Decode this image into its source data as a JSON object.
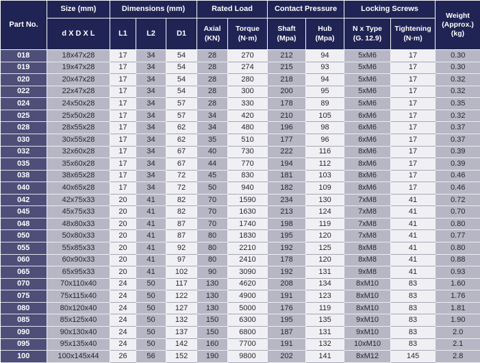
{
  "colors": {
    "header_bg": "#1f2454",
    "part_cell_bg": "#4e4e79",
    "column_gray": "#b6b6c4",
    "column_light": "#f0f0f4",
    "text_dark": "#26262b",
    "text_light": "#ffffff"
  },
  "header": {
    "part_no": "Part No.",
    "groups": {
      "size": "Size (mm)",
      "dimensions": "Dimensions (mm)",
      "rated_load": "Rated Load",
      "contact_pressure": "Contact Pressure",
      "locking_screws": "Locking Screws"
    },
    "weight": {
      "l1": "Weight",
      "l2": "(Approx.)",
      "l3": "(kg)"
    },
    "sub": {
      "size": "d X D X L",
      "l1": "L1",
      "l2": "L2",
      "d1": "D1",
      "axial": {
        "label": "Axial",
        "unit": "(KN)"
      },
      "torque": {
        "label": "Torque",
        "unit": "(N·m)"
      },
      "shaft": {
        "label": "Shaft",
        "unit": "(Mpa)"
      },
      "hub": {
        "label": "Hub",
        "unit": "(Mpa)"
      },
      "n_type": {
        "label": "N x Type",
        "unit": "(G. 12.9)"
      },
      "tightening": {
        "label": "Tightening",
        "unit": "(N·m)"
      }
    }
  },
  "columns": [
    "Part No.",
    "d X D X L",
    "L1",
    "L2",
    "D1",
    "Axial (KN)",
    "Torque (N·m)",
    "Shaft (Mpa)",
    "Hub (Mpa)",
    "N x Type (G. 12.9)",
    "Tightening (N·m)",
    "Weight (Approx.) (kg)"
  ],
  "rows": [
    [
      "018",
      "18x47x28",
      "17",
      "34",
      "54",
      "28",
      "270",
      "212",
      "94",
      "5xM6",
      "17",
      "0.30"
    ],
    [
      "019",
      "19x47x28",
      "17",
      "34",
      "54",
      "28",
      "274",
      "215",
      "93",
      "5xM6",
      "17",
      "0.30"
    ],
    [
      "020",
      "20x47x28",
      "17",
      "34",
      "54",
      "28",
      "280",
      "218",
      "94",
      "5xM6",
      "17",
      "0.32"
    ],
    [
      "022",
      "22x47x28",
      "17",
      "34",
      "54",
      "28",
      "300",
      "200",
      "95",
      "5xM6",
      "17",
      "0.32"
    ],
    [
      "024",
      "24x50x28",
      "17",
      "34",
      "57",
      "28",
      "330",
      "178",
      "89",
      "5xM6",
      "17",
      "0.35"
    ],
    [
      "025",
      "25x50x28",
      "17",
      "34",
      "57",
      "34",
      "420",
      "210",
      "105",
      "6xM6",
      "17",
      "0.32"
    ],
    [
      "028",
      "28x55x28",
      "17",
      "34",
      "62",
      "34",
      "480",
      "196",
      "98",
      "6xM6",
      "17",
      "0.37"
    ],
    [
      "030",
      "30x55x28",
      "17",
      "34",
      "62",
      "35",
      "510",
      "177",
      "96",
      "6xM6",
      "17",
      "0.37"
    ],
    [
      "032",
      "32x60x28",
      "17",
      "34",
      "67",
      "40",
      "730",
      "222",
      "116",
      "8xM6",
      "17",
      "0.39"
    ],
    [
      "035",
      "35x60x28",
      "17",
      "34",
      "67",
      "44",
      "770",
      "194",
      "112",
      "8xM6",
      "17",
      "0.39"
    ],
    [
      "038",
      "38x65x28",
      "17",
      "34",
      "72",
      "45",
      "830",
      "181",
      "103",
      "8xM6",
      "17",
      "0.46"
    ],
    [
      "040",
      "40x65x28",
      "17",
      "34",
      "72",
      "50",
      "940",
      "182",
      "109",
      "8xM6",
      "17",
      "0.46"
    ],
    [
      "042",
      "42x75x33",
      "20",
      "41",
      "82",
      "70",
      "1590",
      "234",
      "130",
      "7xM8",
      "41",
      "0.72"
    ],
    [
      "045",
      "45x75x33",
      "20",
      "41",
      "82",
      "70",
      "1630",
      "213",
      "124",
      "7xM8",
      "41",
      "0.70"
    ],
    [
      "048",
      "48x80x33",
      "20",
      "41",
      "87",
      "70",
      "1740",
      "198",
      "119",
      "7xM8",
      "41",
      "0.80"
    ],
    [
      "050",
      "50x80x33",
      "20",
      "41",
      "87",
      "80",
      "1830",
      "195",
      "120",
      "7xM8",
      "41",
      "0.77"
    ],
    [
      "055",
      "55x85x33",
      "20",
      "41",
      "92",
      "80",
      "2210",
      "192",
      "125",
      "8xM8",
      "41",
      "0.80"
    ],
    [
      "060",
      "60x90x33",
      "20",
      "41",
      "97",
      "80",
      "2410",
      "178",
      "120",
      "8xM8",
      "41",
      "0.88"
    ],
    [
      "065",
      "65x95x33",
      "20",
      "41",
      "102",
      "90",
      "3090",
      "192",
      "131",
      "9xM8",
      "41",
      "0.93"
    ],
    [
      "070",
      "70x110x40",
      "24",
      "50",
      "117",
      "130",
      "4620",
      "208",
      "134",
      "8xM10",
      "83",
      "1.60"
    ],
    [
      "075",
      "75x115x40",
      "24",
      "50",
      "122",
      "130",
      "4900",
      "191",
      "123",
      "8xM10",
      "83",
      "1.76"
    ],
    [
      "080",
      "80x120x40",
      "24",
      "50",
      "127",
      "130",
      "5000",
      "176",
      "119",
      "8xM10",
      "83",
      "1.81"
    ],
    [
      "085",
      "85x125x40",
      "24",
      "50",
      "132",
      "150",
      "6300",
      "195",
      "135",
      "9xM10",
      "83",
      "1.90"
    ],
    [
      "090",
      "90x130x40",
      "24",
      "50",
      "137",
      "150",
      "6800",
      "187",
      "131",
      "9xM10",
      "83",
      "2.0"
    ],
    [
      "095",
      "95x135x40",
      "24",
      "50",
      "142",
      "160",
      "7700",
      "191",
      "132",
      "10xM10",
      "83",
      "2.1"
    ],
    [
      "100",
      "100x145x44",
      "26",
      "56",
      "152",
      "190",
      "9800",
      "202",
      "141",
      "8xM12",
      "145",
      "2.8"
    ]
  ]
}
